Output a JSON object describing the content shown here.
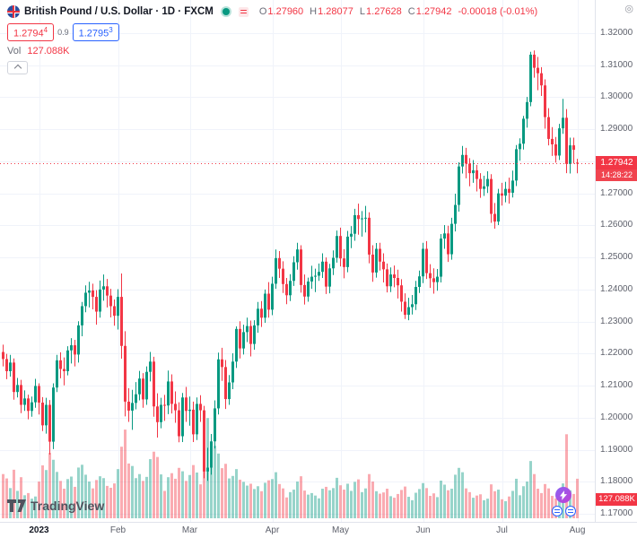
{
  "legend": {
    "title": "British Pound / U.S. Dollar · 1D · FXCM",
    "ohlc": {
      "o_label": "O",
      "o": "1.27960",
      "h_label": "H",
      "h": "1.28077",
      "l_label": "L",
      "l": "1.27628",
      "c_label": "C",
      "c": "1.27942",
      "change": "-0.00018 (-0.01%)"
    },
    "quote": {
      "bid_main": "1.2794",
      "bid_sup": "4",
      "spread": "0.9",
      "ask_main": "1.2795",
      "ask_sup": "3"
    },
    "volume": {
      "label": "Vol",
      "value": "127.088K"
    }
  },
  "axis": {
    "price_labels": [
      "1.32000",
      "1.31000",
      "1.30000",
      "1.29000",
      "1.28000",
      "1.27000",
      "1.26000",
      "1.25000",
      "1.24000",
      "1.23000",
      "1.22000",
      "1.21000",
      "1.20000",
      "1.19000",
      "1.18000",
      "1.17000"
    ],
    "time_labels": [
      {
        "label": "2023",
        "index": 10,
        "bold": true
      },
      {
        "label": "Feb",
        "index": 32,
        "bold": false
      },
      {
        "label": "Mar",
        "index": 52,
        "bold": false
      },
      {
        "label": "Apr",
        "index": 75,
        "bold": false
      },
      {
        "label": "May",
        "index": 94,
        "bold": false
      },
      {
        "label": "Jun",
        "index": 117,
        "bold": false
      },
      {
        "label": "Jul",
        "index": 139,
        "bold": false
      },
      {
        "label": "Aug",
        "index": 160,
        "bold": false
      }
    ]
  },
  "badges": {
    "price": "1.27942",
    "countdown": "14:28:22",
    "volume": "127.088K"
  },
  "footer": {
    "logo_text": "TradingView"
  },
  "colors": {
    "up": "#089981",
    "down": "#f23645",
    "buy_blue": "#2962ff",
    "volume_up": "rgba(8,153,129,0.42)",
    "volume_down": "rgba(242,54,69,0.42)",
    "grid": "#f0f3fa",
    "axis_text": "#5d606b",
    "badge_red": "#f23645"
  },
  "chart_data": {
    "type": "candlestick",
    "title": "British Pound / U.S. Dollar, 1D, FXCM",
    "x_range": [
      "Dec 2022",
      "Aug 2023"
    ],
    "ylim": [
      1.168,
      1.33
    ],
    "grid": true,
    "volume_scale_max_k": 340,
    "last_bar": {
      "open": 1.2796,
      "high": 1.28077,
      "low": 1.27628,
      "close": 1.27942,
      "change": -0.00018,
      "change_pct": -0.01,
      "volume_k": 127.088
    },
    "candles_format": [
      "open",
      "high",
      "low",
      "close",
      "volume_k"
    ],
    "candles": [
      [
        1.2205,
        1.2228,
        1.216,
        1.2183,
        142
      ],
      [
        1.2183,
        1.2199,
        1.212,
        1.2145,
        128
      ],
      [
        1.2145,
        1.2196,
        1.2128,
        1.2172,
        97
      ],
      [
        1.2172,
        1.2185,
        1.2056,
        1.208,
        156
      ],
      [
        1.208,
        1.2124,
        1.2063,
        1.2102,
        88
      ],
      [
        1.2102,
        1.2118,
        1.2014,
        1.204,
        132
      ],
      [
        1.204,
        1.2085,
        1.2021,
        1.206,
        74
      ],
      [
        1.206,
        1.2072,
        1.1995,
        1.2021,
        81
      ],
      [
        1.2021,
        1.2066,
        1.2003,
        1.2048,
        63
      ],
      [
        1.2048,
        1.2121,
        1.2031,
        1.2099,
        70
      ],
      [
        1.2099,
        1.2107,
        1.201,
        1.2047,
        118
      ],
      [
        1.2047,
        1.2064,
        1.1958,
        1.1976,
        170
      ],
      [
        1.1976,
        1.2062,
        1.195,
        1.204,
        155
      ],
      [
        1.204,
        1.2055,
        1.1885,
        1.1925,
        210
      ],
      [
        1.1925,
        1.2107,
        1.1902,
        1.2094,
        188
      ],
      [
        1.2094,
        1.2196,
        1.208,
        1.2179,
        149
      ],
      [
        1.2179,
        1.2204,
        1.2123,
        1.2152,
        120
      ],
      [
        1.2152,
        1.2188,
        1.2101,
        1.2145,
        95
      ],
      [
        1.2145,
        1.2223,
        1.2132,
        1.221,
        126
      ],
      [
        1.221,
        1.2248,
        1.2169,
        1.2226,
        134
      ],
      [
        1.2226,
        1.2243,
        1.216,
        1.2197,
        101
      ],
      [
        1.2197,
        1.2301,
        1.2172,
        1.2288,
        163
      ],
      [
        1.2288,
        1.2361,
        1.2254,
        1.2348,
        172
      ],
      [
        1.2348,
        1.2413,
        1.2329,
        1.239,
        140
      ],
      [
        1.239,
        1.2424,
        1.2344,
        1.2397,
        118
      ],
      [
        1.2397,
        1.2418,
        1.2338,
        1.2377,
        96
      ],
      [
        1.2377,
        1.2398,
        1.229,
        1.2331,
        123
      ],
      [
        1.2331,
        1.2428,
        1.2312,
        1.24,
        135
      ],
      [
        1.24,
        1.2447,
        1.2365,
        1.241,
        129
      ],
      [
        1.241,
        1.2433,
        1.2344,
        1.2381,
        104
      ],
      [
        1.2381,
        1.2402,
        1.2313,
        1.2348,
        98
      ],
      [
        1.2348,
        1.2369,
        1.2287,
        1.2318,
        112
      ],
      [
        1.2318,
        1.2401,
        1.2275,
        1.2377,
        158
      ],
      [
        1.2377,
        1.245,
        1.2184,
        1.2224,
        230
      ],
      [
        1.2224,
        1.227,
        1.2004,
        1.205,
        285
      ],
      [
        1.205,
        1.2092,
        1.1987,
        1.2022,
        176
      ],
      [
        1.2022,
        1.2087,
        1.1962,
        1.2046,
        168
      ],
      [
        1.2046,
        1.2111,
        1.2026,
        1.2073,
        129
      ],
      [
        1.2073,
        1.2146,
        1.2054,
        1.2122,
        142
      ],
      [
        1.2122,
        1.2139,
        1.2031,
        1.2057,
        120
      ],
      [
        1.2057,
        1.216,
        1.204,
        1.2143,
        133
      ],
      [
        1.2143,
        1.2205,
        1.2113,
        1.2175,
        190
      ],
      [
        1.2175,
        1.219,
        1.2003,
        1.2035,
        214
      ],
      [
        1.2035,
        1.2076,
        1.1938,
        1.1986,
        197
      ],
      [
        1.1986,
        1.2062,
        1.1967,
        1.204,
        141
      ],
      [
        1.204,
        1.2071,
        1.199,
        1.2038,
        88
      ],
      [
        1.2038,
        1.2147,
        1.2011,
        1.2113,
        132
      ],
      [
        1.2113,
        1.2135,
        1.2013,
        1.2043,
        145
      ],
      [
        1.2043,
        1.2082,
        1.1984,
        1.2023,
        127
      ],
      [
        1.2023,
        1.2048,
        1.1923,
        1.1942,
        162
      ],
      [
        1.1942,
        1.2077,
        1.1924,
        1.2063,
        151
      ],
      [
        1.2063,
        1.2096,
        1.1987,
        1.2021,
        120
      ],
      [
        1.2021,
        1.2066,
        1.1975,
        1.2025,
        139
      ],
      [
        1.2025,
        1.205,
        1.1924,
        1.1948,
        171
      ],
      [
        1.1948,
        1.2063,
        1.193,
        1.2043,
        147
      ],
      [
        1.2043,
        1.207,
        1.1987,
        1.2023,
        109
      ],
      [
        1.2023,
        1.2037,
        1.1811,
        1.1832,
        265
      ],
      [
        1.1832,
        1.1906,
        1.1803,
        1.1844,
        322
      ],
      [
        1.1844,
        1.1949,
        1.1822,
        1.1926,
        240
      ],
      [
        1.1926,
        1.2054,
        1.1904,
        1.2029,
        233
      ],
      [
        1.2029,
        1.2203,
        1.201,
        1.2182,
        208
      ],
      [
        1.2182,
        1.2218,
        1.2115,
        1.2158,
        161
      ],
      [
        1.2158,
        1.218,
        1.2027,
        1.2058,
        175
      ],
      [
        1.2058,
        1.2133,
        1.204,
        1.211,
        128
      ],
      [
        1.211,
        1.2201,
        1.2089,
        1.2175,
        136
      ],
      [
        1.2175,
        1.2285,
        1.2155,
        1.2277,
        158
      ],
      [
        1.2277,
        1.2301,
        1.2185,
        1.2216,
        124
      ],
      [
        1.2216,
        1.229,
        1.2197,
        1.2267,
        117
      ],
      [
        1.2267,
        1.2312,
        1.2236,
        1.2286,
        105
      ],
      [
        1.2286,
        1.2303,
        1.2191,
        1.223,
        111
      ],
      [
        1.223,
        1.2304,
        1.2212,
        1.2288,
        94
      ],
      [
        1.2288,
        1.2361,
        1.2265,
        1.234,
        103
      ],
      [
        1.234,
        1.2364,
        1.2283,
        1.2312,
        87
      ],
      [
        1.2312,
        1.24,
        1.2296,
        1.2387,
        114
      ],
      [
        1.2387,
        1.2423,
        1.2312,
        1.2337,
        122
      ],
      [
        1.2337,
        1.244,
        1.232,
        1.2418,
        126
      ],
      [
        1.2418,
        1.2525,
        1.2402,
        1.2498,
        148
      ],
      [
        1.2498,
        1.252,
        1.2436,
        1.2465,
        110
      ],
      [
        1.2465,
        1.2488,
        1.2389,
        1.2417,
        96
      ],
      [
        1.2417,
        1.2436,
        1.2354,
        1.2382,
        67
      ],
      [
        1.2382,
        1.2448,
        1.2364,
        1.2427,
        84
      ],
      [
        1.2427,
        1.2504,
        1.2411,
        1.2485,
        92
      ],
      [
        1.2485,
        1.2546,
        1.2462,
        1.2525,
        118
      ],
      [
        1.2525,
        1.2538,
        1.239,
        1.2414,
        135
      ],
      [
        1.2414,
        1.2447,
        1.2353,
        1.2378,
        89
      ],
      [
        1.2378,
        1.2437,
        1.2362,
        1.2425,
        76
      ],
      [
        1.2425,
        1.2474,
        1.2402,
        1.244,
        81
      ],
      [
        1.244,
        1.2465,
        1.2392,
        1.2443,
        73
      ],
      [
        1.2443,
        1.2481,
        1.2427,
        1.2455,
        64
      ],
      [
        1.2455,
        1.2513,
        1.2436,
        1.2487,
        95
      ],
      [
        1.2487,
        1.25,
        1.2386,
        1.2409,
        101
      ],
      [
        1.2409,
        1.248,
        1.2388,
        1.2466,
        90
      ],
      [
        1.2466,
        1.2522,
        1.2445,
        1.2499,
        97
      ],
      [
        1.2499,
        1.2584,
        1.2484,
        1.2567,
        130
      ],
      [
        1.2567,
        1.2593,
        1.2472,
        1.2497,
        106
      ],
      [
        1.2497,
        1.2526,
        1.2435,
        1.247,
        92
      ],
      [
        1.247,
        1.2583,
        1.2454,
        1.2565,
        111
      ],
      [
        1.2565,
        1.2598,
        1.2529,
        1.2574,
        88
      ],
      [
        1.2574,
        1.2652,
        1.2552,
        1.2632,
        117
      ],
      [
        1.2632,
        1.2668,
        1.2571,
        1.262,
        125
      ],
      [
        1.262,
        1.2645,
        1.2565,
        1.2622,
        84
      ],
      [
        1.2622,
        1.2661,
        1.2578,
        1.2624,
        96
      ],
      [
        1.2624,
        1.2641,
        1.2482,
        1.2509,
        142
      ],
      [
        1.2509,
        1.2538,
        1.2424,
        1.2453,
        118
      ],
      [
        1.2453,
        1.2545,
        1.2437,
        1.2527,
        87
      ],
      [
        1.2527,
        1.2546,
        1.2459,
        1.2487,
        79
      ],
      [
        1.2487,
        1.2513,
        1.2422,
        1.2463,
        83
      ],
      [
        1.2463,
        1.2481,
        1.2391,
        1.241,
        95
      ],
      [
        1.241,
        1.2469,
        1.2392,
        1.2447,
        71
      ],
      [
        1.2447,
        1.2475,
        1.2407,
        1.2436,
        66
      ],
      [
        1.2436,
        1.2462,
        1.2372,
        1.2413,
        78
      ],
      [
        1.2413,
        1.2432,
        1.2331,
        1.2362,
        91
      ],
      [
        1.2362,
        1.2388,
        1.2308,
        1.2321,
        102
      ],
      [
        1.2321,
        1.2374,
        1.2304,
        1.2345,
        69
      ],
      [
        1.2345,
        1.2383,
        1.2322,
        1.2354,
        58
      ],
      [
        1.2354,
        1.2427,
        1.2336,
        1.2408,
        82
      ],
      [
        1.2408,
        1.2459,
        1.2389,
        1.2441,
        94
      ],
      [
        1.2441,
        1.2546,
        1.242,
        1.2527,
        113
      ],
      [
        1.2527,
        1.2551,
        1.2433,
        1.2451,
        97
      ],
      [
        1.2451,
        1.2479,
        1.2405,
        1.2435,
        72
      ],
      [
        1.2435,
        1.2466,
        1.2387,
        1.2423,
        80
      ],
      [
        1.2423,
        1.2464,
        1.2396,
        1.244,
        68
      ],
      [
        1.244,
        1.2573,
        1.2422,
        1.2559,
        121
      ],
      [
        1.2559,
        1.2601,
        1.2527,
        1.2575,
        108
      ],
      [
        1.2575,
        1.2599,
        1.2486,
        1.251,
        90
      ],
      [
        1.251,
        1.2624,
        1.2493,
        1.2605,
        95
      ],
      [
        1.2605,
        1.2699,
        1.2581,
        1.2664,
        140
      ],
      [
        1.2664,
        1.2797,
        1.2643,
        1.2784,
        162
      ],
      [
        1.2784,
        1.2848,
        1.2762,
        1.282,
        148
      ],
      [
        1.282,
        1.2842,
        1.2747,
        1.2793,
        96
      ],
      [
        1.2793,
        1.281,
        1.2722,
        1.2763,
        84
      ],
      [
        1.2763,
        1.2804,
        1.2733,
        1.2772,
        66
      ],
      [
        1.2772,
        1.2789,
        1.2706,
        1.2745,
        73
      ],
      [
        1.2745,
        1.2763,
        1.2686,
        1.2714,
        77
      ],
      [
        1.2714,
        1.2755,
        1.2692,
        1.2722,
        58
      ],
      [
        1.2722,
        1.2769,
        1.2701,
        1.2745,
        63
      ],
      [
        1.2745,
        1.276,
        1.2608,
        1.2636,
        109
      ],
      [
        1.2636,
        1.267,
        1.259,
        1.2612,
        87
      ],
      [
        1.2612,
        1.2714,
        1.2601,
        1.27,
        92
      ],
      [
        1.27,
        1.2733,
        1.2662,
        1.2693,
        61
      ],
      [
        1.2693,
        1.2736,
        1.2672,
        1.2714,
        55
      ],
      [
        1.2714,
        1.2749,
        1.2668,
        1.2702,
        70
      ],
      [
        1.2702,
        1.2771,
        1.2687,
        1.274,
        88
      ],
      [
        1.274,
        1.2851,
        1.2723,
        1.2838,
        127
      ],
      [
        1.2838,
        1.2872,
        1.2802,
        1.2855,
        74
      ],
      [
        1.2855,
        1.2942,
        1.2837,
        1.2933,
        103
      ],
      [
        1.2933,
        1.3001,
        1.2905,
        1.2985,
        118
      ],
      [
        1.2985,
        1.3142,
        1.2972,
        1.3133,
        184
      ],
      [
        1.3133,
        1.3146,
        1.3061,
        1.3092,
        142
      ],
      [
        1.3092,
        1.3126,
        1.3022,
        1.3075,
        95
      ],
      [
        1.3075,
        1.3094,
        1.3004,
        1.3037,
        81
      ],
      [
        1.3037,
        1.3056,
        1.2902,
        1.2938,
        110
      ],
      [
        1.2938,
        1.2966,
        1.285,
        1.287,
        96
      ],
      [
        1.287,
        1.2907,
        1.2817,
        1.2853,
        72
      ],
      [
        1.2853,
        1.2876,
        1.2796,
        1.2818,
        64
      ],
      [
        1.2818,
        1.2917,
        1.2804,
        1.2903,
        86
      ],
      [
        1.2903,
        1.2995,
        1.2886,
        1.2936,
        112
      ],
      [
        1.2936,
        1.2963,
        1.2763,
        1.2792,
        270
      ],
      [
        1.2792,
        1.2874,
        1.2762,
        1.285,
        90
      ],
      [
        1.285,
        1.2874,
        1.2793,
        1.2836,
        78
      ],
      [
        1.2796,
        1.28077,
        1.27628,
        1.27942,
        127.088
      ]
    ]
  }
}
